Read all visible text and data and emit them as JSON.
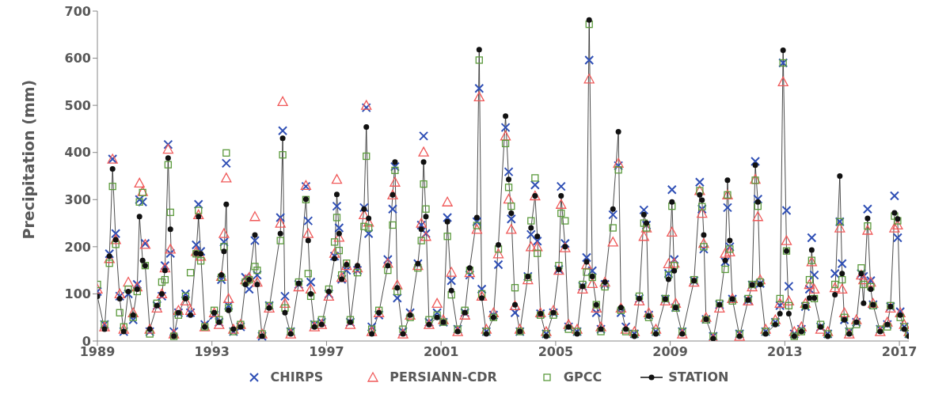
{
  "chart_data": {
    "type": "scatter",
    "ylabel": "Precipitation (mm)",
    "xlim": [
      1989,
      2017.33
    ],
    "xticks": [
      1989,
      1993,
      1997,
      2001,
      2005,
      2009,
      2013,
      2017
    ],
    "ylim": [
      0,
      700
    ],
    "yticks": [
      0,
      100,
      200,
      300,
      400,
      500,
      600,
      700
    ],
    "legend": "bottom",
    "x": [
      1989.0,
      1989.25,
      1989.42,
      1989.53,
      1989.64,
      1989.78,
      1989.92,
      1990.08,
      1990.25,
      1990.39,
      1990.47,
      1990.58,
      1990.67,
      1990.83,
      1991.08,
      1991.25,
      1991.36,
      1991.47,
      1991.55,
      1991.67,
      1991.83,
      1992.08,
      1992.25,
      1992.45,
      1992.53,
      1992.61,
      1992.75,
      1993.08,
      1993.25,
      1993.33,
      1993.42,
      1993.5,
      1993.58,
      1993.75,
      1994.0,
      1994.17,
      1994.3,
      1994.5,
      1994.58,
      1994.75,
      1995.0,
      1995.39,
      1995.47,
      1995.55,
      1995.75,
      1996.03,
      1996.28,
      1996.36,
      1996.45,
      1996.58,
      1996.83,
      1997.08,
      1997.28,
      1997.36,
      1997.44,
      1997.53,
      1997.7,
      1997.83,
      1998.08,
      1998.31,
      1998.39,
      1998.47,
      1998.58,
      1998.83,
      1999.14,
      1999.31,
      1999.39,
      1999.47,
      1999.67,
      1999.92,
      2000.19,
      2000.31,
      2000.39,
      2000.47,
      2000.58,
      2000.86,
      2001.08,
      2001.22,
      2001.36,
      2001.58,
      2001.83,
      2002.0,
      2002.25,
      2002.33,
      2002.42,
      2002.58,
      2002.83,
      2003.0,
      2003.25,
      2003.36,
      2003.45,
      2003.58,
      2003.75,
      2004.03,
      2004.14,
      2004.28,
      2004.36,
      2004.47,
      2004.67,
      2004.92,
      2005.11,
      2005.19,
      2005.33,
      2005.45,
      2005.75,
      2005.94,
      2006.08,
      2006.17,
      2006.28,
      2006.42,
      2006.58,
      2006.72,
      2007.0,
      2007.19,
      2007.28,
      2007.45,
      2007.75,
      2007.92,
      2008.08,
      2008.17,
      2008.25,
      2008.5,
      2008.83,
      2008.94,
      2009.06,
      2009.14,
      2009.19,
      2009.42,
      2009.83,
      2010.03,
      2010.11,
      2010.17,
      2010.25,
      2010.5,
      2010.72,
      2010.92,
      2011.0,
      2011.08,
      2011.17,
      2011.42,
      2011.72,
      2011.86,
      2011.97,
      2012.06,
      2012.14,
      2012.33,
      2012.67,
      2012.83,
      2012.94,
      2013.06,
      2013.14,
      2013.33,
      2013.58,
      2013.72,
      2013.86,
      2013.94,
      2014.03,
      2014.25,
      2014.5,
      2014.75,
      2014.92,
      2015.0,
      2015.08,
      2015.25,
      2015.5,
      2015.67,
      2015.75,
      2015.89,
      2016.0,
      2016.08,
      2016.33,
      2016.58,
      2016.69,
      2016.83,
      2016.94,
      2017.03,
      2017.17,
      2017.33
    ],
    "series": [
      {
        "name": "CHIRPS",
        "marker": "cross",
        "color": "#2f4fb5",
        "values": [
          105,
          35,
          185,
          386,
          228,
          95,
          20,
          100,
          45,
          120,
          300,
          295,
          207,
          20,
          75,
          95,
          160,
          417,
          186,
          20,
          60,
          100,
          60,
          204,
          290,
          190,
          35,
          55,
          40,
          130,
          210,
          377,
          75,
          20,
          30,
          135,
          110,
          213,
          140,
          10,
          75,
          262,
          446,
          95,
          20,
          120,
          328,
          255,
          125,
          35,
          40,
          100,
          180,
          286,
          240,
          131,
          150,
          40,
          150,
          283,
          495,
          228,
          30,
          55,
          173,
          280,
          370,
          91,
          20,
          60,
          164,
          246,
          435,
          228,
          40,
          60,
          40,
          262,
          128,
          25,
          60,
          140,
          253,
          536,
          110,
          20,
          55,
          162,
          453,
          359,
          259,
          60,
          20,
          137,
          226,
          331,
          212,
          58,
          15,
          60,
          152,
          328,
          207,
          30,
          20,
          116,
          177,
          596,
          149,
          60,
          25,
          120,
          268,
          372,
          60,
          30,
          15,
          90,
          278,
          246,
          55,
          20,
          89,
          143,
          321,
          173,
          71,
          20,
          128,
          337,
          280,
          195,
          46,
          10,
          77,
          168,
          283,
          200,
          89,
          15,
          87,
          119,
          381,
          301,
          122,
          20,
          40,
          75,
          590,
          277,
          116,
          15,
          25,
          73,
          110,
          219,
          140,
          30,
          15,
          143,
          253,
          164,
          45,
          20,
          40,
          143,
          137,
          280,
          128,
          77,
          25,
          35,
          73,
          308,
          219,
          62,
          30,
          15
        ]
      },
      {
        "name": "PERSIANN-CDR",
        "marker": "triangle",
        "color": "#f05a5a",
        "values": [
          110,
          30,
          175,
          386,
          215,
          100,
          25,
          125,
          60,
          115,
          335,
          317,
          205,
          25,
          70,
          100,
          155,
          407,
          195,
          15,
          65,
          85,
          65,
          190,
          268,
          180,
          30,
          60,
          35,
          137,
          228,
          346,
          90,
          25,
          35,
          130,
          135,
          264,
          125,
          15,
          70,
          250,
          508,
          80,
          15,
          115,
          330,
          228,
          110,
          30,
          35,
          95,
          186,
          343,
          220,
          135,
          160,
          35,
          155,
          268,
          500,
          252,
          20,
          60,
          165,
          310,
          337,
          119,
          15,
          55,
          160,
          250,
          401,
          222,
          35,
          80,
          45,
          295,
          146,
          20,
          55,
          145,
          237,
          518,
          95,
          25,
          60,
          185,
          435,
          301,
          237,
          75,
          25,
          130,
          200,
          308,
          200,
          60,
          20,
          65,
          150,
          290,
          198,
          35,
          25,
          110,
          162,
          556,
          122,
          70,
          30,
          125,
          210,
          377,
          70,
          25,
          20,
          85,
          222,
          240,
          60,
          25,
          85,
          164,
          231,
          165,
          80,
          15,
          125,
          319,
          271,
          207,
          50,
          5,
          70,
          186,
          310,
          189,
          90,
          10,
          85,
          115,
          343,
          264,
          130,
          25,
          45,
          80,
          550,
          213,
          85,
          20,
          30,
          80,
          120,
          168,
          110,
          25,
          20,
          113,
          240,
          110,
          60,
          15,
          45,
          140,
          130,
          235,
          125,
          80,
          20,
          40,
          70,
          240,
          246,
          60,
          35,
          20
        ]
      },
      {
        "name": "GPCC",
        "marker": "square",
        "color": "#5b9a3c",
        "values": [
          120,
          35,
          165,
          328,
          205,
          60,
          30,
          110,
          50,
          105,
          295,
          315,
          160,
          15,
          80,
          125,
          130,
          374,
          273,
          10,
          55,
          95,
          145,
          185,
          277,
          170,
          30,
          65,
          45,
          135,
          200,
          399,
          70,
          20,
          35,
          125,
          130,
          158,
          150,
          15,
          75,
          213,
          395,
          70,
          20,
          125,
          300,
          143,
          95,
          35,
          45,
          110,
          210,
          262,
          192,
          140,
          165,
          45,
          145,
          243,
          392,
          240,
          25,
          65,
          150,
          246,
          362,
          105,
          25,
          50,
          155,
          213,
          333,
          280,
          45,
          55,
          40,
          222,
          98,
          25,
          65,
          150,
          245,
          596,
          100,
          20,
          50,
          195,
          419,
          326,
          286,
          113,
          20,
          135,
          255,
          346,
          186,
          55,
          15,
          55,
          160,
          271,
          255,
          25,
          20,
          120,
          146,
          672,
          135,
          77,
          20,
          115,
          240,
          363,
          65,
          20,
          15,
          95,
          250,
          240,
          50,
          20,
          90,
          140,
          286,
          160,
          70,
          20,
          130,
          319,
          285,
          200,
          45,
          10,
          80,
          152,
          310,
          195,
          85,
          15,
          90,
          120,
          341,
          286,
          125,
          20,
          40,
          90,
          590,
          191,
          75,
          10,
          20,
          75,
          130,
          171,
          90,
          35,
          15,
          120,
          253,
          130,
          50,
          20,
          35,
          155,
          120,
          244,
          115,
          75,
          25,
          30,
          75,
          265,
          255,
          50,
          30,
          15
        ]
      },
      {
        "name": "STATION",
        "type": "line",
        "marker": "circle",
        "line_style": "solid",
        "color": "#111111",
        "values": [
          95,
          25,
          180,
          365,
          215,
          90,
          20,
          105,
          55,
          110,
          264,
          171,
          160,
          25,
          75,
          100,
          150,
          388,
          237,
          10,
          60,
          90,
          55,
          186,
          264,
          185,
          30,
          60,
          40,
          140,
          190,
          290,
          65,
          25,
          30,
          120,
          130,
          225,
          120,
          10,
          70,
          228,
          430,
          60,
          15,
          122,
          301,
          213,
          100,
          30,
          35,
          105,
          175,
          311,
          228,
          131,
          162,
          40,
          160,
          280,
          454,
          260,
          15,
          60,
          160,
          310,
          380,
          113,
          15,
          55,
          164,
          237,
          380,
          264,
          35,
          50,
          40,
          253,
          107,
          20,
          60,
          155,
          262,
          618,
          91,
          15,
          50,
          204,
          477,
          343,
          271,
          77,
          20,
          137,
          240,
          308,
          222,
          58,
          10,
          60,
          152,
          308,
          200,
          30,
          15,
          116,
          168,
          681,
          137,
          77,
          25,
          125,
          280,
          444,
          71,
          25,
          10,
          90,
          268,
          250,
          53,
          15,
          89,
          131,
          295,
          149,
          71,
          15,
          128,
          310,
          299,
          225,
          46,
          5,
          77,
          171,
          341,
          213,
          89,
          10,
          87,
          119,
          373,
          295,
          120,
          15,
          35,
          58,
          617,
          191,
          58,
          10,
          20,
          73,
          91,
          193,
          91,
          30,
          10,
          98,
          350,
          143,
          45,
          15,
          40,
          143,
          80,
          260,
          110,
          77,
          20,
          35,
          73,
          272,
          259,
          55,
          25,
          10
        ]
      }
    ]
  }
}
